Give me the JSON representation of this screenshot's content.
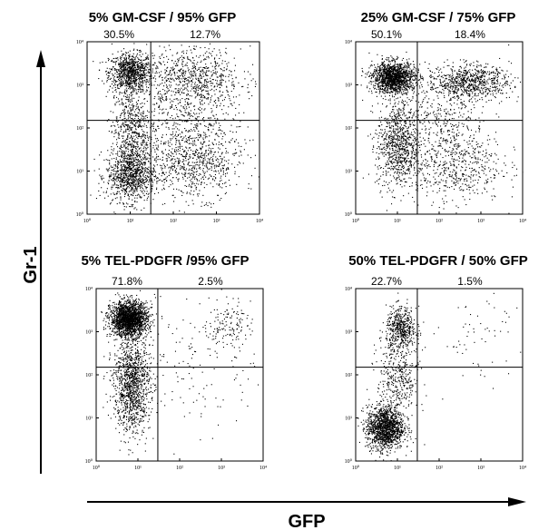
{
  "figure": {
    "y_axis_title": "Gr-1",
    "x_axis_title": "GFP"
  },
  "chart_data": [
    {
      "type": "scatter",
      "title": "5% GM-CSF / 95% GFP",
      "xscale": "log",
      "yscale": "log",
      "xlim": [
        1,
        10000
      ],
      "ylim": [
        1,
        10000
      ],
      "x_ticks": [
        "10⁰",
        "10¹",
        "10²",
        "10³",
        "10⁴"
      ],
      "y_ticks": [
        "10⁰",
        "10¹",
        "10²",
        "10³",
        "10⁴"
      ],
      "gate": {
        "x": 30,
        "y": 150
      },
      "quadrant_labels": {
        "upper_left": "30.5%",
        "upper_right": "12.7%"
      },
      "populations": [
        {
          "cx": 10,
          "cy": 2000,
          "sx": 0.25,
          "sy": 0.22,
          "n": 900
        },
        {
          "cx": 10,
          "cy": 8,
          "sx": 0.28,
          "sy": 0.3,
          "n": 900
        },
        {
          "cx": 10,
          "cy": 100,
          "sx": 0.22,
          "sy": 0.55,
          "n": 600
        },
        {
          "cx": 300,
          "cy": 1500,
          "sx": 0.55,
          "sy": 0.35,
          "n": 700
        },
        {
          "cx": 300,
          "cy": 15,
          "sx": 0.55,
          "sy": 0.4,
          "n": 700
        },
        {
          "cx": 200,
          "cy": 150,
          "sx": 0.6,
          "sy": 0.5,
          "n": 400
        }
      ]
    },
    {
      "type": "scatter",
      "title": "25% GM-CSF / 75% GFP",
      "xscale": "log",
      "yscale": "log",
      "xlim": [
        1,
        10000
      ],
      "ylim": [
        1,
        10000
      ],
      "x_ticks": [
        "10⁰",
        "10¹",
        "10²",
        "10³",
        "10⁴"
      ],
      "y_ticks": [
        "10⁰",
        "10¹",
        "10²",
        "10³",
        "10⁴"
      ],
      "gate": {
        "x": 30,
        "y": 150
      },
      "quadrant_labels": {
        "upper_left": "50.1%",
        "upper_right": "18.4%"
      },
      "populations": [
        {
          "cx": 8,
          "cy": 1500,
          "sx": 0.25,
          "sy": 0.18,
          "n": 1500
        },
        {
          "cx": 500,
          "cy": 1200,
          "sx": 0.5,
          "sy": 0.2,
          "n": 800
        },
        {
          "cx": 10,
          "cy": 40,
          "sx": 0.25,
          "sy": 0.5,
          "n": 800
        },
        {
          "cx": 200,
          "cy": 15,
          "sx": 0.6,
          "sy": 0.45,
          "n": 600
        },
        {
          "cx": 100,
          "cy": 150,
          "sx": 0.6,
          "sy": 0.4,
          "n": 300
        }
      ]
    },
    {
      "type": "scatter",
      "title": "5% TEL-PDGFR /95% GFP",
      "xscale": "log",
      "yscale": "log",
      "xlim": [
        1,
        10000
      ],
      "ylim": [
        1,
        10000
      ],
      "x_ticks": [
        "10⁰",
        "10¹",
        "10²",
        "10³",
        "10⁴"
      ],
      "y_ticks": [
        "10⁰",
        "10¹",
        "10²",
        "10³",
        "10⁴"
      ],
      "gate": {
        "x": 30,
        "y": 150
      },
      "quadrant_labels": {
        "upper_left": "71.8%",
        "upper_right": "2.5%"
      },
      "populations": [
        {
          "cx": 6,
          "cy": 2000,
          "sx": 0.22,
          "sy": 0.2,
          "n": 2000
        },
        {
          "cx": 7,
          "cy": 60,
          "sx": 0.22,
          "sy": 0.55,
          "n": 1200
        },
        {
          "cx": 1500,
          "cy": 1500,
          "sx": 0.25,
          "sy": 0.25,
          "n": 120
        },
        {
          "cx": 300,
          "cy": 300,
          "sx": 0.7,
          "sy": 0.9,
          "n": 150
        }
      ]
    },
    {
      "type": "scatter",
      "title": "50% TEL-PDGFR / 50% GFP",
      "xscale": "log",
      "yscale": "log",
      "xlim": [
        1,
        10000
      ],
      "ylim": [
        1,
        10000
      ],
      "x_ticks": [
        "10⁰",
        "10¹",
        "10²",
        "10³",
        "10⁴"
      ],
      "y_ticks": [
        "10⁰",
        "10¹",
        "10²",
        "10³",
        "10⁴"
      ],
      "gate": {
        "x": 30,
        "y": 150
      },
      "quadrant_labels": {
        "upper_left": "22.7%",
        "upper_right": "1.5%"
      },
      "populations": [
        {
          "cx": 5,
          "cy": 6,
          "sx": 0.22,
          "sy": 0.25,
          "n": 1400
        },
        {
          "cx": 12,
          "cy": 1200,
          "sx": 0.18,
          "sy": 0.25,
          "n": 500
        },
        {
          "cx": 10,
          "cy": 80,
          "sx": 0.25,
          "sy": 0.5,
          "n": 400
        },
        {
          "cx": 1000,
          "cy": 800,
          "sx": 0.5,
          "sy": 0.5,
          "n": 60
        }
      ]
    }
  ]
}
